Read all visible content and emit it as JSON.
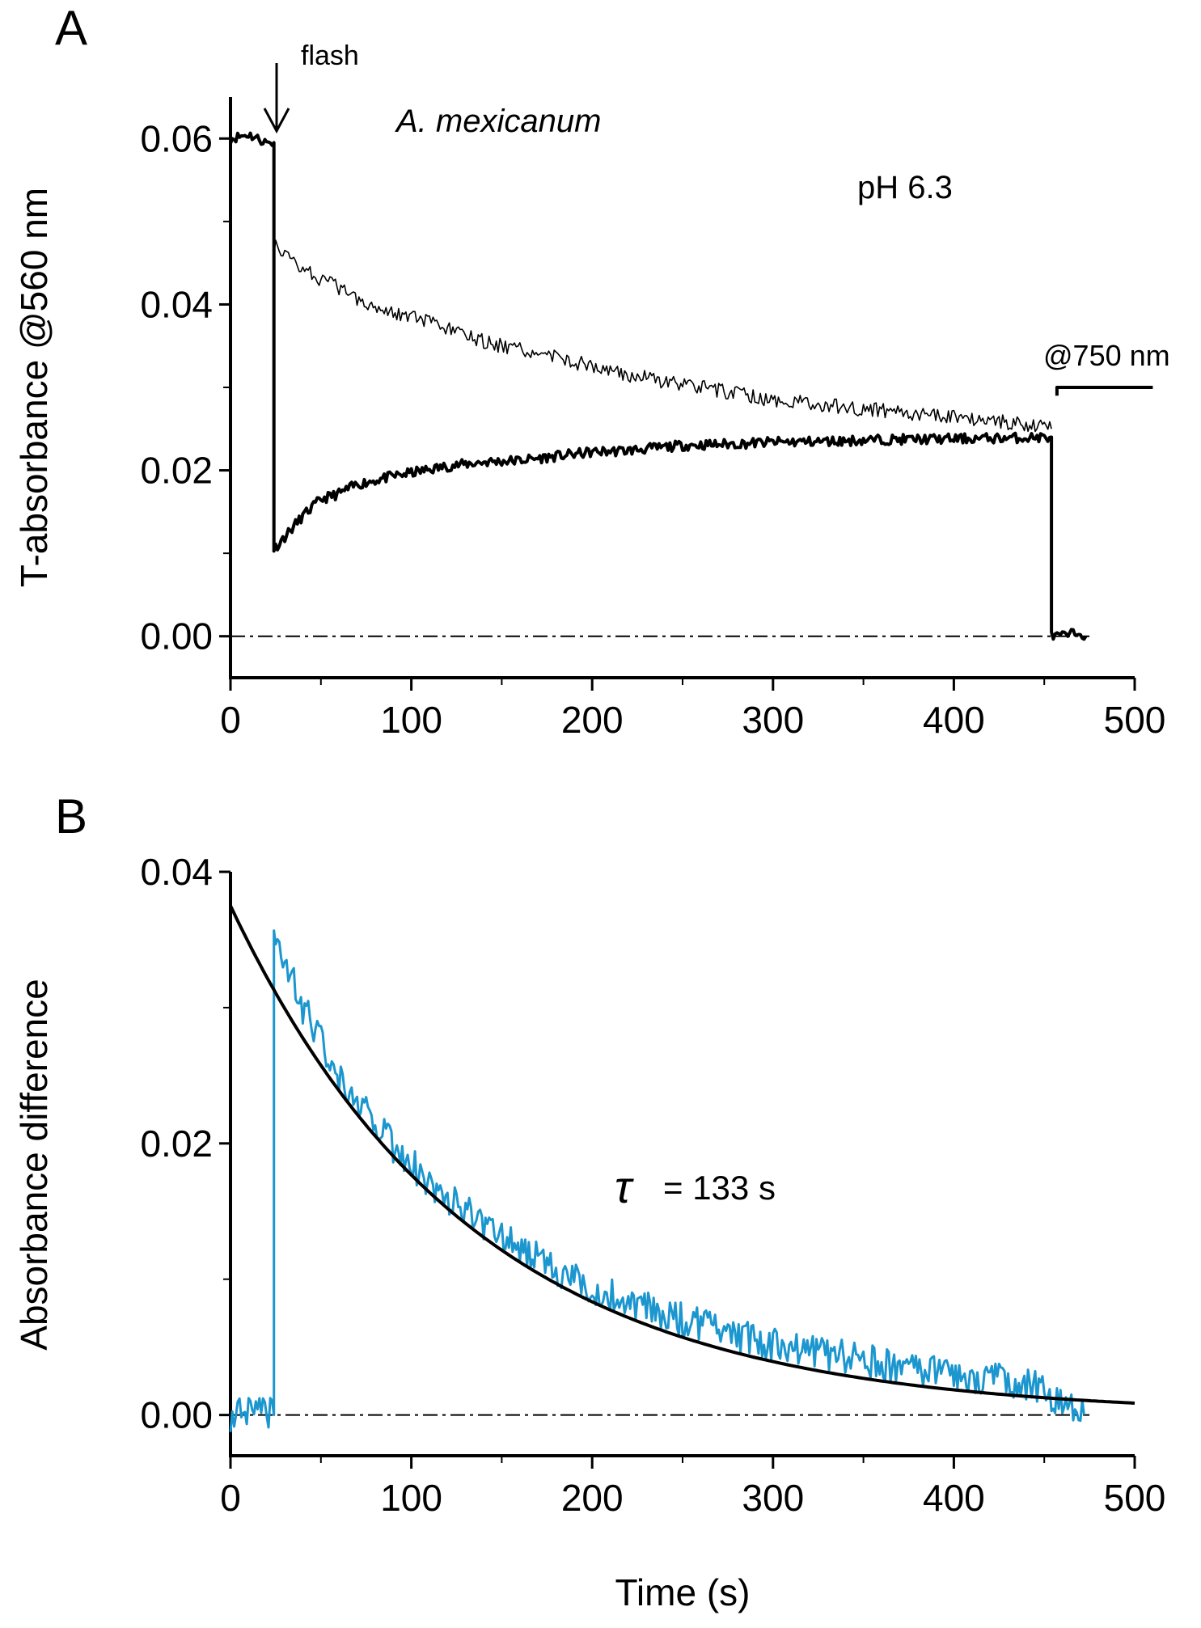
{
  "figure": {
    "x_axis_title": "Time (s)"
  },
  "chart_data": [
    {
      "panel": "A",
      "type": "line",
      "title": "",
      "xlabel": "",
      "ylabel": "T-absorbance @560 nm",
      "xlim": [
        0,
        500
      ],
      "ylim": [
        -0.005,
        0.065
      ],
      "x_ticks": [
        "0",
        "100",
        "200",
        "300",
        "400",
        "500"
      ],
      "y_ticks": [
        "0.00",
        "0.02",
        "0.04",
        "0.06"
      ],
      "annotations": {
        "flash": "flash",
        "species": "A. mexicanum",
        "ph": "pH 6.3",
        "wavelength": "@750 nm"
      },
      "flash_time": 24,
      "series": [
        {
          "style": "thick",
          "points": [
            [
              0,
              0.06
            ],
            [
              10,
              0.0605
            ],
            [
              20,
              0.0595
            ],
            [
              24,
              0.0595
            ],
            [
              24,
              0.0105
            ],
            [
              30,
              0.012
            ],
            [
              40,
              0.0145
            ],
            [
              50,
              0.0165
            ],
            [
              60,
              0.0172
            ],
            [
              70,
              0.0183
            ],
            [
              80,
              0.0188
            ],
            [
              90,
              0.0193
            ],
            [
              100,
              0.0197
            ],
            [
              120,
              0.0205
            ],
            [
              140,
              0.021
            ],
            [
              160,
              0.0212
            ],
            [
              180,
              0.0217
            ],
            [
              200,
              0.0222
            ],
            [
              220,
              0.0224
            ],
            [
              250,
              0.023
            ],
            [
              280,
              0.0232
            ],
            [
              300,
              0.0234
            ],
            [
              330,
              0.0235
            ],
            [
              360,
              0.0237
            ],
            [
              400,
              0.0238
            ],
            [
              430,
              0.0239
            ],
            [
              454,
              0.024
            ],
            [
              454,
              0.0
            ],
            [
              460,
              0.0
            ],
            [
              470,
              0.0005
            ],
            [
              473,
              0.0
            ]
          ]
        },
        {
          "style": "thin",
          "points": [
            [
              24,
              0.047
            ],
            [
              30,
              0.046
            ],
            [
              40,
              0.0445
            ],
            [
              50,
              0.043
            ],
            [
              60,
              0.042
            ],
            [
              70,
              0.0408
            ],
            [
              80,
              0.0398
            ],
            [
              100,
              0.0385
            ],
            [
              120,
              0.037
            ],
            [
              140,
              0.0355
            ],
            [
              160,
              0.0345
            ],
            [
              180,
              0.0337
            ],
            [
              200,
              0.0325
            ],
            [
              220,
              0.0315
            ],
            [
              250,
              0.0303
            ],
            [
              280,
              0.0293
            ],
            [
              300,
              0.0285
            ],
            [
              330,
              0.0278
            ],
            [
              360,
              0.0272
            ],
            [
              400,
              0.0265
            ],
            [
              430,
              0.0258
            ],
            [
              454,
              0.025
            ]
          ]
        },
        {
          "style": "step",
          "points": [
            [
              457,
              0.029
            ],
            [
              457,
              0.03
            ],
            [
              510,
              0.03
            ]
          ]
        }
      ],
      "baseline": 0
    },
    {
      "panel": "B",
      "type": "line",
      "title": "",
      "xlabel": "Time (s)",
      "ylabel": "Absorbance difference",
      "xlim": [
        0,
        500
      ],
      "ylim": [
        -0.003,
        0.04
      ],
      "x_ticks": [
        "0",
        "100",
        "200",
        "300",
        "400",
        "500"
      ],
      "y_ticks": [
        "0.00",
        "0.02",
        "0.04"
      ],
      "annotation": {
        "tau_symbol": "τ",
        "tau_text": "= 133 s"
      },
      "series": [
        {
          "style": "data",
          "color": "#1b96cf",
          "points": [
            [
              0,
              0.0
            ],
            [
              24,
              0.0
            ],
            [
              24,
              0.035
            ],
            [
              30,
              0.0335
            ],
            [
              40,
              0.03
            ],
            [
              50,
              0.0275
            ],
            [
              60,
              0.025
            ],
            [
              70,
              0.0233
            ],
            [
              80,
              0.0215
            ],
            [
              90,
              0.0198
            ],
            [
              100,
              0.0185
            ],
            [
              120,
              0.016
            ],
            [
              140,
              0.014
            ],
            [
              160,
              0.0123
            ],
            [
              180,
              0.0108
            ],
            [
              200,
              0.0093
            ],
            [
              220,
              0.0083
            ],
            [
              250,
              0.007
            ],
            [
              280,
              0.0059
            ],
            [
              300,
              0.0052
            ],
            [
              330,
              0.0045
            ],
            [
              360,
              0.0038
            ],
            [
              400,
              0.003
            ],
            [
              430,
              0.0025
            ],
            [
              450,
              0.002
            ],
            [
              460,
              0.0005
            ],
            [
              472,
              0.0
            ]
          ]
        },
        {
          "style": "fit",
          "color": "#000000",
          "amplitude": 0.0375,
          "tau": 133,
          "xrange": [
            0,
            500
          ]
        }
      ],
      "baseline": 0
    }
  ]
}
